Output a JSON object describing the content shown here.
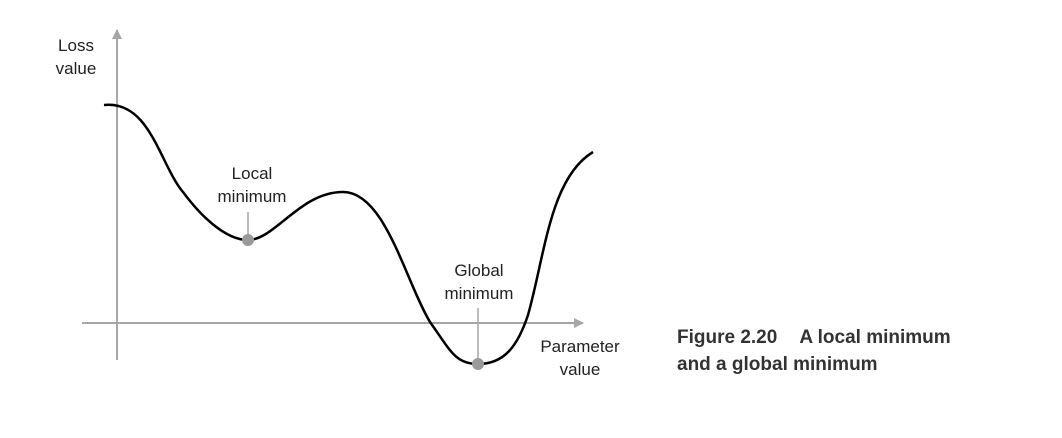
{
  "axes": {
    "y_label_line1": "Loss",
    "y_label_line2": "value",
    "x_label_line1": "Parameter",
    "x_label_line2": "value"
  },
  "annotations": {
    "local_line1": "Local",
    "local_line2": "minimum",
    "global_line1": "Global",
    "global_line2": "minimum"
  },
  "caption": {
    "number": "Figure 2.20",
    "title_line1": "A local minimum",
    "title_line2": "and a global minimum"
  },
  "colors": {
    "curve": "#000000",
    "axis": "#a6a6a6",
    "marker": "#9a9a9a",
    "caption_text": "#333333"
  }
}
